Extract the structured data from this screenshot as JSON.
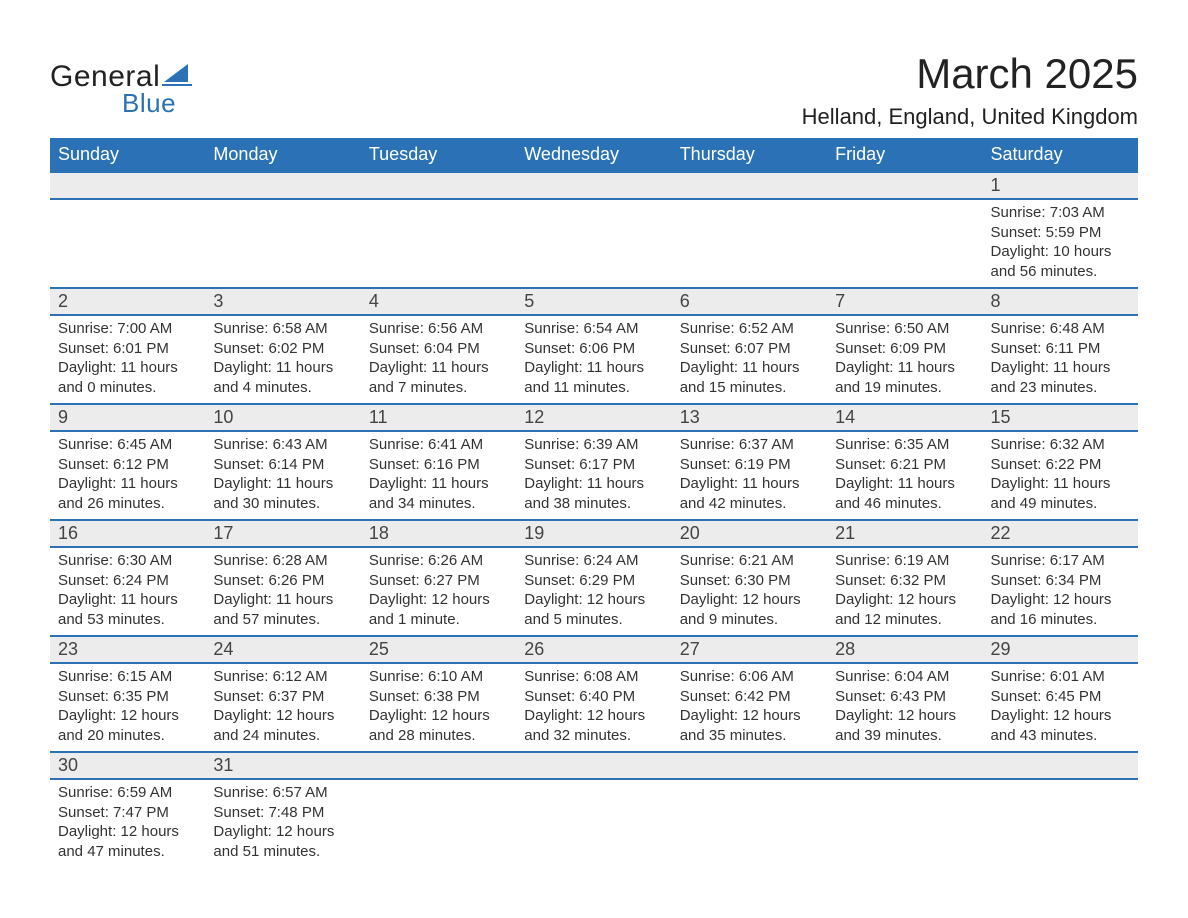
{
  "logo": {
    "text_top": "General",
    "text_bottom": "Blue",
    "top_color": "#222222",
    "bottom_color": "#2a72b5",
    "sail_color": "#2a72b5"
  },
  "title": "March 2025",
  "location": "Helland, England, United Kingdom",
  "colors": {
    "header_bg": "#2a72b5",
    "header_text": "#ffffff",
    "daynum_bg": "#ececec",
    "border": "#2a72b5",
    "body_text": "#333333",
    "page_bg": "#ffffff"
  },
  "fonts": {
    "month_title_size": 42,
    "location_size": 22,
    "dayname_size": 18,
    "daynum_size": 18,
    "detail_size": 15
  },
  "day_names": [
    "Sunday",
    "Monday",
    "Tuesday",
    "Wednesday",
    "Thursday",
    "Friday",
    "Saturday"
  ],
  "weeks": [
    {
      "days": [
        null,
        null,
        null,
        null,
        null,
        null,
        {
          "n": "1",
          "sunrise": "7:03 AM",
          "sunset": "5:59 PM",
          "daylight": "10 hours and 56 minutes."
        }
      ]
    },
    {
      "days": [
        {
          "n": "2",
          "sunrise": "7:00 AM",
          "sunset": "6:01 PM",
          "daylight": "11 hours and 0 minutes."
        },
        {
          "n": "3",
          "sunrise": "6:58 AM",
          "sunset": "6:02 PM",
          "daylight": "11 hours and 4 minutes."
        },
        {
          "n": "4",
          "sunrise": "6:56 AM",
          "sunset": "6:04 PM",
          "daylight": "11 hours and 7 minutes."
        },
        {
          "n": "5",
          "sunrise": "6:54 AM",
          "sunset": "6:06 PM",
          "daylight": "11 hours and 11 minutes."
        },
        {
          "n": "6",
          "sunrise": "6:52 AM",
          "sunset": "6:07 PM",
          "daylight": "11 hours and 15 minutes."
        },
        {
          "n": "7",
          "sunrise": "6:50 AM",
          "sunset": "6:09 PM",
          "daylight": "11 hours and 19 minutes."
        },
        {
          "n": "8",
          "sunrise": "6:48 AM",
          "sunset": "6:11 PM",
          "daylight": "11 hours and 23 minutes."
        }
      ]
    },
    {
      "days": [
        {
          "n": "9",
          "sunrise": "6:45 AM",
          "sunset": "6:12 PM",
          "daylight": "11 hours and 26 minutes."
        },
        {
          "n": "10",
          "sunrise": "6:43 AM",
          "sunset": "6:14 PM",
          "daylight": "11 hours and 30 minutes."
        },
        {
          "n": "11",
          "sunrise": "6:41 AM",
          "sunset": "6:16 PM",
          "daylight": "11 hours and 34 minutes."
        },
        {
          "n": "12",
          "sunrise": "6:39 AM",
          "sunset": "6:17 PM",
          "daylight": "11 hours and 38 minutes."
        },
        {
          "n": "13",
          "sunrise": "6:37 AM",
          "sunset": "6:19 PM",
          "daylight": "11 hours and 42 minutes."
        },
        {
          "n": "14",
          "sunrise": "6:35 AM",
          "sunset": "6:21 PM",
          "daylight": "11 hours and 46 minutes."
        },
        {
          "n": "15",
          "sunrise": "6:32 AM",
          "sunset": "6:22 PM",
          "daylight": "11 hours and 49 minutes."
        }
      ]
    },
    {
      "days": [
        {
          "n": "16",
          "sunrise": "6:30 AM",
          "sunset": "6:24 PM",
          "daylight": "11 hours and 53 minutes."
        },
        {
          "n": "17",
          "sunrise": "6:28 AM",
          "sunset": "6:26 PM",
          "daylight": "11 hours and 57 minutes."
        },
        {
          "n": "18",
          "sunrise": "6:26 AM",
          "sunset": "6:27 PM",
          "daylight": "12 hours and 1 minute."
        },
        {
          "n": "19",
          "sunrise": "6:24 AM",
          "sunset": "6:29 PM",
          "daylight": "12 hours and 5 minutes."
        },
        {
          "n": "20",
          "sunrise": "6:21 AM",
          "sunset": "6:30 PM",
          "daylight": "12 hours and 9 minutes."
        },
        {
          "n": "21",
          "sunrise": "6:19 AM",
          "sunset": "6:32 PM",
          "daylight": "12 hours and 12 minutes."
        },
        {
          "n": "22",
          "sunrise": "6:17 AM",
          "sunset": "6:34 PM",
          "daylight": "12 hours and 16 minutes."
        }
      ]
    },
    {
      "days": [
        {
          "n": "23",
          "sunrise": "6:15 AM",
          "sunset": "6:35 PM",
          "daylight": "12 hours and 20 minutes."
        },
        {
          "n": "24",
          "sunrise": "6:12 AM",
          "sunset": "6:37 PM",
          "daylight": "12 hours and 24 minutes."
        },
        {
          "n": "25",
          "sunrise": "6:10 AM",
          "sunset": "6:38 PM",
          "daylight": "12 hours and 28 minutes."
        },
        {
          "n": "26",
          "sunrise": "6:08 AM",
          "sunset": "6:40 PM",
          "daylight": "12 hours and 32 minutes."
        },
        {
          "n": "27",
          "sunrise": "6:06 AM",
          "sunset": "6:42 PM",
          "daylight": "12 hours and 35 minutes."
        },
        {
          "n": "28",
          "sunrise": "6:04 AM",
          "sunset": "6:43 PM",
          "daylight": "12 hours and 39 minutes."
        },
        {
          "n": "29",
          "sunrise": "6:01 AM",
          "sunset": "6:45 PM",
          "daylight": "12 hours and 43 minutes."
        }
      ]
    },
    {
      "days": [
        {
          "n": "30",
          "sunrise": "6:59 AM",
          "sunset": "7:47 PM",
          "daylight": "12 hours and 47 minutes."
        },
        {
          "n": "31",
          "sunrise": "6:57 AM",
          "sunset": "7:48 PM",
          "daylight": "12 hours and 51 minutes."
        },
        null,
        null,
        null,
        null,
        null
      ]
    }
  ],
  "labels": {
    "sunrise": "Sunrise:",
    "sunset": "Sunset:",
    "daylight": "Daylight:"
  }
}
